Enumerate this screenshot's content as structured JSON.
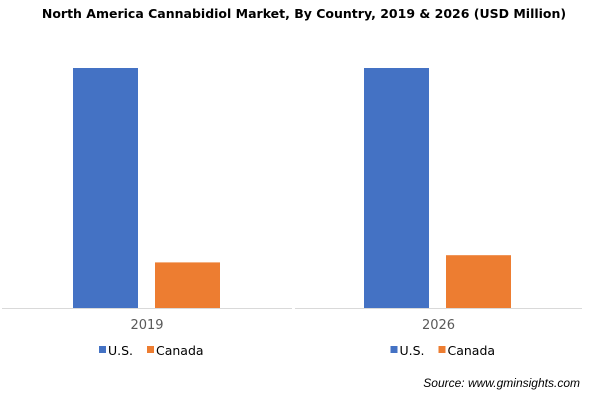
{
  "chart_data": {
    "type": "bar",
    "title": "North America Cannabidiol Market, By Country, 2019 & 2026 (USD Million)",
    "categories": [
      "2019",
      "2026"
    ],
    "series": [
      {
        "name": "U.S.",
        "color": "#4472C4",
        "values": [
          100,
          100
        ]
      },
      {
        "name": "Canada",
        "color": "#ED7D31",
        "values": [
          19,
          22
        ]
      }
    ],
    "value_note": "relative bar heights (no value axis shown)",
    "ylim": [
      0,
      100
    ],
    "grid": false,
    "legend": "bottom of each panel",
    "source": "Source: www.gminsights.com"
  }
}
